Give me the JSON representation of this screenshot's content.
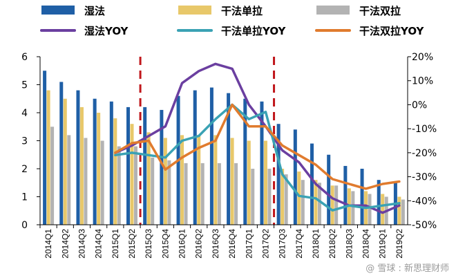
{
  "chart_data": {
    "type": "bar",
    "categories": [
      "2014Q1",
      "2014Q2",
      "2014Q3",
      "2014Q4",
      "2015Q1",
      "2015Q2",
      "2015Q3",
      "2015Q4",
      "2016Q1",
      "2016Q2",
      "2016Q3",
      "2016Q4",
      "2017Q1",
      "2017Q2",
      "2017Q3",
      "2017Q4",
      "2018Q1",
      "2018Q2",
      "2018Q3",
      "2018Q4",
      "2019Q1",
      "2019Q2"
    ],
    "bar_series": [
      {
        "name": "湿法",
        "color": "#1f5fa6",
        "values": [
          5.5,
          5.1,
          4.8,
          4.5,
          4.4,
          4.2,
          4.2,
          4.1,
          4.6,
          4.8,
          4.9,
          4.7,
          4.5,
          4.4,
          3.6,
          3.4,
          2.9,
          2.5,
          2.1,
          2.0,
          1.6,
          1.5
        ]
      },
      {
        "name": "干法单拉",
        "color": "#e8c86a",
        "values": [
          4.8,
          4.5,
          4.2,
          4.0,
          3.8,
          3.6,
          3.3,
          3.1,
          3.2,
          3.2,
          3.2,
          3.1,
          3.0,
          3.0,
          2.0,
          1.9,
          1.6,
          1.4,
          1.3,
          1.2,
          1.1,
          1.0
        ]
      },
      {
        "name": "干法双拉",
        "color": "#b3b3b3",
        "values": [
          3.5,
          3.2,
          3.1,
          3.0,
          2.8,
          2.8,
          2.4,
          2.3,
          2.2,
          2.2,
          2.2,
          2.2,
          2.0,
          2.0,
          1.8,
          1.6,
          1.5,
          1.4,
          1.2,
          1.1,
          1.0,
          0.9
        ]
      }
    ],
    "line_series": [
      {
        "name": "湿法YOY",
        "color": "#6b3fa0",
        "values": [
          null,
          null,
          null,
          null,
          -20,
          -17,
          -13,
          -9,
          9,
          14,
          17,
          15,
          0,
          -9,
          -19,
          -24,
          -33,
          -39,
          -42,
          -42,
          -45,
          -42
        ]
      },
      {
        "name": "干法单拉YOY",
        "color": "#3aa2b4",
        "values": [
          null,
          null,
          null,
          null,
          -21,
          -20,
          -21,
          -22,
          -15,
          -13,
          -6,
          0,
          -6,
          -3,
          -29,
          -38,
          -39,
          -44,
          -42,
          -43,
          -42,
          -41
        ]
      },
      {
        "name": "干法双拉YOY",
        "color": "#e07b2e",
        "values": [
          null,
          null,
          null,
          null,
          -20,
          -16,
          -15,
          -27,
          -22,
          -18,
          -15,
          0,
          -9,
          -9,
          -17,
          -21,
          -25,
          -31,
          -33,
          -35,
          -33,
          -32
        ]
      }
    ],
    "y_left": {
      "min": 0,
      "max": 6,
      "ticks": [
        "0",
        "1",
        "2",
        "3",
        "4",
        "5",
        "6"
      ]
    },
    "y_right": {
      "min": -50,
      "max": 20,
      "ticks": [
        "-50%",
        "-40%",
        "-30%",
        "-20%",
        "-10%",
        "0%",
        "10%",
        "20%"
      ]
    },
    "markers": {
      "dashed_lines_after": [
        "2015Q2",
        "2017Q2"
      ],
      "color": "#c0161b"
    },
    "grid": false,
    "legend_position": "top"
  },
  "watermark": "@ 雪球 : 新思理财师"
}
